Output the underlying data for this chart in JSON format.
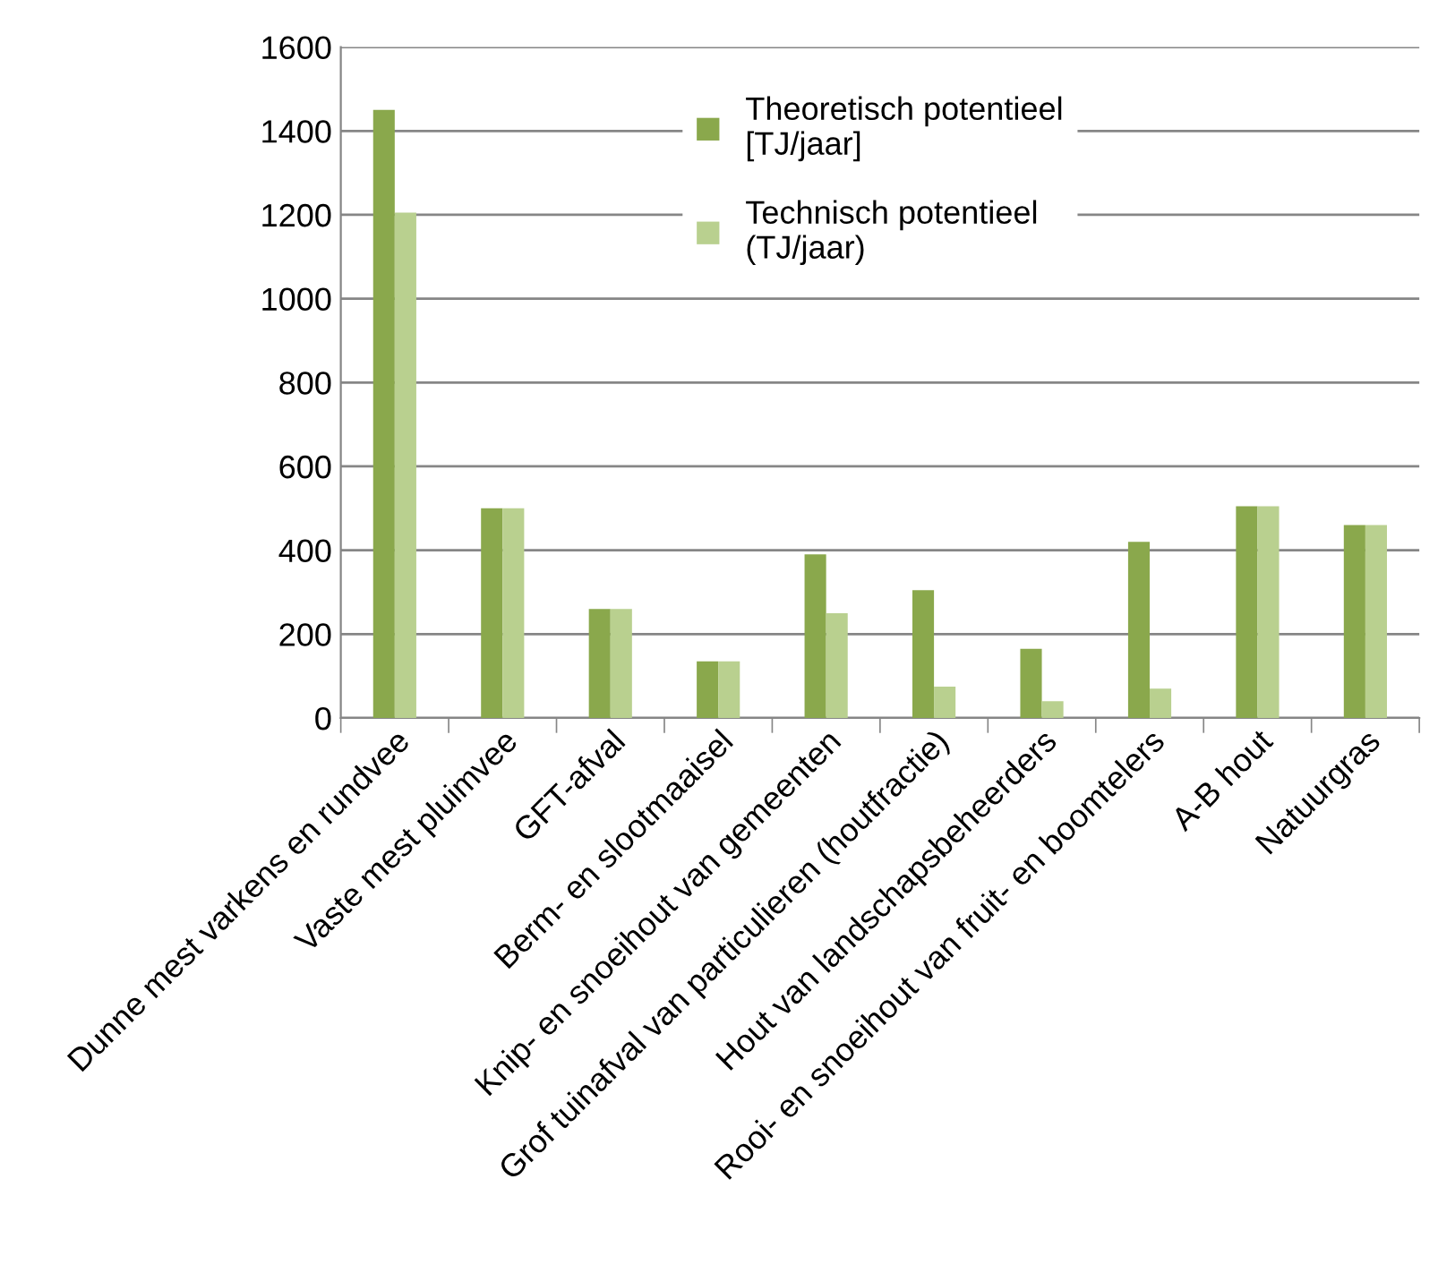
{
  "chart_data": {
    "type": "bar",
    "categories": [
      "Dunne mest varkens en rundvee",
      "Vaste mest pluimvee",
      "GFT-afval",
      "Berm- en slootmaaisel",
      "Knip- en snoeihout van gemeenten",
      "Grof tuinafval van particulieren (houtfractie)",
      "Hout van landschapsbeheerders",
      "Rooi- en snoeihout van fruit- en boomtelers",
      "A-B hout",
      "Natuurgras"
    ],
    "series": [
      {
        "name": "Theoretisch potentieel\n[TJ/jaar]",
        "color": "#8aa84c",
        "values": [
          1450,
          500,
          260,
          135,
          390,
          305,
          165,
          420,
          505,
          460
        ]
      },
      {
        "name": "Technisch potentieel\n(TJ/jaar)",
        "color": "#b9d08f",
        "values": [
          1205,
          500,
          260,
          135,
          250,
          75,
          40,
          70,
          505,
          460
        ]
      }
    ],
    "ylim": [
      0,
      1600
    ],
    "yticks": [
      0,
      200,
      400,
      600,
      800,
      1000,
      1200,
      1400,
      1600
    ],
    "grid": "y",
    "legend": "top"
  }
}
